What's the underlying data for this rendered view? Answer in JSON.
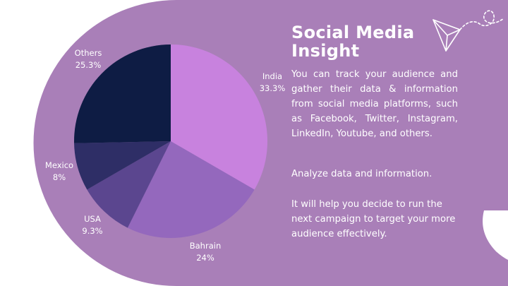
{
  "colors": {
    "background": "#ffffff",
    "panel": "#a97fb8",
    "text": "#ffffff",
    "slices": [
      "#c882de",
      "#9468bd",
      "#5b468f",
      "#2e2e66",
      "#0e1c44"
    ]
  },
  "content": {
    "title_line1": "Social Media",
    "title_line2": "Insight",
    "paragraph1": "You can track your audience and gather their data & information from social media platforms, such as Facebook, Twitter, Instagram, LinkedIn, Youtube, and others.",
    "paragraph2": "Analyze data and information.",
    "paragraph3": "It will help you decide to run the next campaign to target your more audience effectively."
  },
  "decor": {
    "icon": "paper-plane-icon"
  },
  "chart_data": {
    "type": "pie",
    "start": "top, clockwise",
    "slices": [
      {
        "label": "India",
        "value": 33.3,
        "value_label": "33.3%"
      },
      {
        "label": "Bahrain",
        "value": 24,
        "value_label": "24%"
      },
      {
        "label": "USA",
        "value": 9.3,
        "value_label": "9.3%"
      },
      {
        "label": "Mexico",
        "value": 8,
        "value_label": "8%"
      },
      {
        "label": "Others",
        "value": 25.3,
        "value_label": "25.3%"
      }
    ]
  }
}
